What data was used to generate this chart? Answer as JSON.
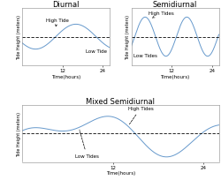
{
  "title1": "Diurnal",
  "title2": "Semidiurnal",
  "title3": "Mixed Semidiurnal",
  "xlabel": "Time(hours)",
  "ylabel": "Tide Height (meters)",
  "xlim": [
    0,
    26
  ],
  "ylim": [
    -1.6,
    1.6
  ],
  "line_color": "#6699cc",
  "dashed_color": "#000000",
  "annotation_color": "#000000",
  "bg_color": "#ffffff",
  "high_tide_label1": "High Tide",
  "low_tide_label1": "Low Tide",
  "high_tides_label2": "High Tides",
  "low_tides_label2": "Low Tides",
  "high_tides_label3": "High Tides",
  "low_tides_label3": "Low Tides",
  "fontsize_title": 6,
  "fontsize_annot": 4,
  "fontsize_axis": 4,
  "fontsize_ylabel": 3.5
}
